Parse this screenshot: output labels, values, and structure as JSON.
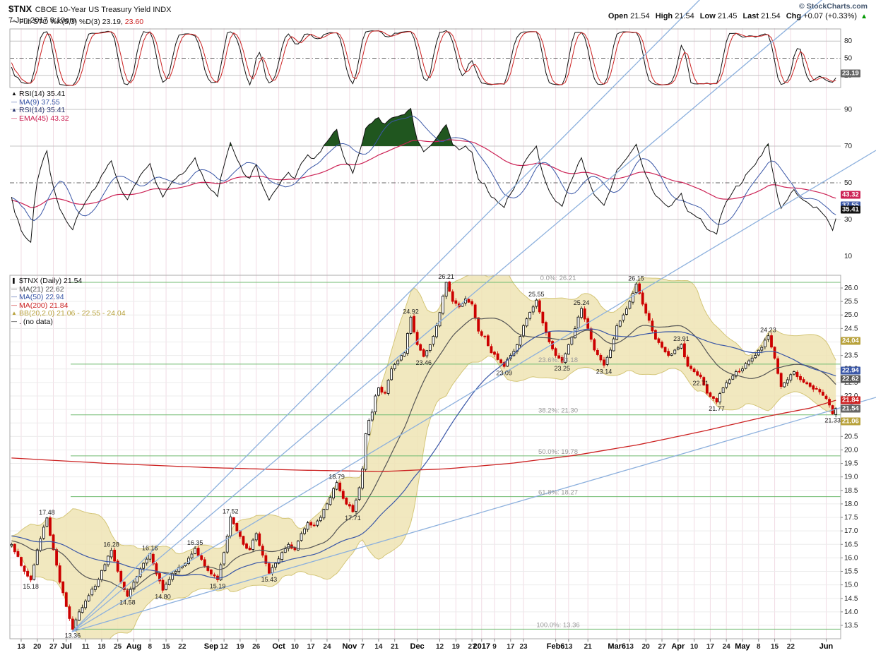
{
  "header": {
    "symbol": "$TNX",
    "description": "CBOE 10-Year US Treasury Yield INDX",
    "timestamp": "7-Jun-2017 9:10am",
    "credit": "© StockCharts.com",
    "quote": {
      "open_label": "Open",
      "open": "21.54",
      "high_label": "High",
      "high": "21.54",
      "low_label": "Low",
      "low": "21.45",
      "last_label": "Last",
      "last": "21.54",
      "chg_label": "Chg",
      "chg": "+0.07 (+0.33%)",
      "arrow": "▲"
    }
  },
  "icons": {
    "line": "—",
    "area": "▲",
    "candle": "❚"
  },
  "chart_data": {
    "type": "multi-panel-financial",
    "colors": {
      "up": "#000000",
      "down": "#cc0000",
      "bb_fill": "#eee4b4",
      "bb_edge": "#d4c678",
      "bb_box": "#b8a23c",
      "ma21": "#555555",
      "ma50": "#3a57a7",
      "ma200": "#cc2222",
      "last_box": "#666666",
      "fib": "#70bb70",
      "fib_label": "#999999",
      "trend": "#8cb0dd",
      "grid_h": "#ececec",
      "grid_v": "#f1dbe4",
      "frame": "#aaaaaa",
      "level_line": "#c4c4c4",
      "mid_line": "#666666",
      "rsi": "#111111",
      "rsi_dup": "#26336e",
      "rsi_ma9": "#3a57a7",
      "rsi_ema45": "#cc2255",
      "rsi_fill": "#20561f",
      "stoch_k": "#111111",
      "stoch_d": "#cc2222",
      "text": "#111111",
      "axis_text": "#222222",
      "annotation": "#222222"
    },
    "stochastic": {
      "type": "line",
      "legend": {
        "label": "Full STO %K(5,3) %D(3)",
        "k_value": "23.19,",
        "d_value": "23.60"
      },
      "k_last": 23.19,
      "d_last": 23.6,
      "ylim": [
        0,
        100
      ],
      "gridlines": [
        80,
        50,
        20
      ],
      "axis_labels": [
        "80",
        "50",
        "20"
      ],
      "box": {
        "text": "23.19",
        "value": 23.19
      }
    },
    "rsi": {
      "type": "line",
      "legend": [
        {
          "label": "RSI(14) 35.41",
          "color_key": "rsi",
          "icon": "area"
        },
        {
          "label": "MA(9) 37.55",
          "color_key": "rsi_ma9",
          "icon": "line"
        },
        {
          "label": "RSI(14) 35.41",
          "color_key": "rsi_dup",
          "icon": "area"
        },
        {
          "label": "EMA(45) 43.32",
          "color_key": "rsi_ema45",
          "icon": "line"
        }
      ],
      "last_values": {
        "rsi": 35.41,
        "ma9": 37.55,
        "ema45": 43.32
      },
      "gridlines": [
        90,
        70,
        30
      ],
      "mid_gridline": 50,
      "axis_labels": [
        90,
        70,
        50,
        30,
        10
      ],
      "overbought_level": 70,
      "boxes": [
        {
          "text": "43.32",
          "value": 43.32,
          "color_key": "rsi_ema45"
        },
        {
          "text": "37.55",
          "value": 37.55,
          "color_key": "rsi_ma9"
        },
        {
          "text": "35.41",
          "value": 35.41,
          "color_key": "rsi"
        }
      ]
    },
    "price": {
      "type": "candlestick",
      "title": "$TNX (Daily) 21.54",
      "last": 21.54,
      "legend": [
        {
          "label": "$TNX (Daily) 21.54",
          "color_key": "text",
          "icon": "candle"
        },
        {
          "label": "MA(21) 22.62",
          "color_key": "ma21",
          "icon": "line"
        },
        {
          "label": "MA(50) 22.94",
          "color_key": "ma50",
          "icon": "line"
        },
        {
          "label": "MA(200) 21.84",
          "color_key": "ma200",
          "icon": "line"
        },
        {
          "label": "BB(20,2.0) 21.06 - 22.55 - 24.04",
          "color_key": "bb_box",
          "icon": "area"
        },
        {
          "label": ". (no data)",
          "color_key": "text",
          "icon": "line"
        }
      ],
      "ylim": [
        13.5,
        26.0
      ],
      "ytick_step": 0.5,
      "bars_total": 258,
      "anchors": [
        [
          0,
          16.5
        ],
        [
          2,
          16.05
        ],
        [
          4,
          15.5
        ],
        [
          6,
          15.18
        ],
        [
          8,
          16.3
        ],
        [
          11,
          17.48
        ],
        [
          13,
          16.3
        ],
        [
          15,
          15.1
        ],
        [
          17,
          14.2
        ],
        [
          19,
          13.36
        ],
        [
          21,
          14.0
        ],
        [
          24,
          14.6
        ],
        [
          27,
          15.2
        ],
        [
          31,
          16.28
        ],
        [
          34,
          15.1
        ],
        [
          36,
          14.58
        ],
        [
          38,
          15.1
        ],
        [
          41,
          15.8
        ],
        [
          43,
          16.16
        ],
        [
          45,
          15.4
        ],
        [
          47,
          14.8
        ],
        [
          49,
          15.2
        ],
        [
          51,
          15.5
        ],
        [
          54,
          15.8
        ],
        [
          57,
          16.35
        ],
        [
          60,
          15.7
        ],
        [
          62,
          15.4
        ],
        [
          64,
          15.19
        ],
        [
          66,
          16.2
        ],
        [
          68,
          17.52
        ],
        [
          70,
          17.0
        ],
        [
          72,
          16.5
        ],
        [
          74,
          16.3
        ],
        [
          76,
          16.9
        ],
        [
          78,
          16.1
        ],
        [
          80,
          15.43
        ],
        [
          82,
          15.8
        ],
        [
          84,
          16.2
        ],
        [
          86,
          16.5
        ],
        [
          88,
          16.3
        ],
        [
          90,
          16.9
        ],
        [
          92,
          17.3
        ],
        [
          94,
          17.2
        ],
        [
          96,
          17.5
        ],
        [
          98,
          18.0
        ],
        [
          101,
          18.79
        ],
        [
          103,
          18.2
        ],
        [
          106,
          17.71
        ],
        [
          108,
          18.6
        ],
        [
          109,
          19.3
        ],
        [
          110,
          20.6
        ],
        [
          111,
          21.1
        ],
        [
          112,
          21.4
        ],
        [
          113,
          22.0
        ],
        [
          114,
          22.3
        ],
        [
          116,
          22.1
        ],
        [
          118,
          23.0
        ],
        [
          120,
          23.3
        ],
        [
          122,
          23.6
        ],
        [
          124,
          24.92
        ],
        [
          126,
          23.9
        ],
        [
          128,
          23.46
        ],
        [
          130,
          23.9
        ],
        [
          132,
          24.6
        ],
        [
          134,
          25.7
        ],
        [
          135,
          26.21
        ],
        [
          137,
          25.5
        ],
        [
          139,
          25.3
        ],
        [
          141,
          25.6
        ],
        [
          143,
          25.4
        ],
        [
          145,
          24.4
        ],
        [
          147,
          24.2
        ],
        [
          149,
          23.6
        ],
        [
          151,
          23.35
        ],
        [
          153,
          23.09
        ],
        [
          155,
          23.5
        ],
        [
          157,
          23.9
        ],
        [
          159,
          24.6
        ],
        [
          161,
          25.1
        ],
        [
          163,
          25.55
        ],
        [
          165,
          24.7
        ],
        [
          167,
          24.0
        ],
        [
          169,
          23.5
        ],
        [
          171,
          23.25
        ],
        [
          173,
          23.9
        ],
        [
          175,
          24.5
        ],
        [
          177,
          25.24
        ],
        [
          179,
          24.5
        ],
        [
          181,
          23.7
        ],
        [
          184,
          23.14
        ],
        [
          186,
          23.7
        ],
        [
          188,
          24.6
        ],
        [
          190,
          25.0
        ],
        [
          192,
          25.5
        ],
        [
          194,
          26.15
        ],
        [
          196,
          25.4
        ],
        [
          198,
          24.8
        ],
        [
          200,
          24.1
        ],
        [
          202,
          23.8
        ],
        [
          204,
          23.5
        ],
        [
          206,
          23.7
        ],
        [
          208,
          23.91
        ],
        [
          210,
          23.1
        ],
        [
          212,
          22.9
        ],
        [
          214,
          22.71
        ],
        [
          216,
          22.1
        ],
        [
          219,
          21.77
        ],
        [
          221,
          22.3
        ],
        [
          223,
          22.6
        ],
        [
          225,
          22.9
        ],
        [
          227,
          23.0
        ],
        [
          229,
          23.3
        ],
        [
          231,
          23.5
        ],
        [
          233,
          23.8
        ],
        [
          235,
          24.23
        ],
        [
          237,
          23.4
        ],
        [
          239,
          22.35
        ],
        [
          241,
          22.6
        ],
        [
          243,
          22.9
        ],
        [
          245,
          22.6
        ],
        [
          247,
          22.45
        ],
        [
          249,
          22.25
        ],
        [
          251,
          22.15
        ],
        [
          253,
          21.9
        ],
        [
          255,
          21.33
        ],
        [
          256,
          21.54
        ]
      ],
      "ma200_anchors": [
        [
          0,
          19.7
        ],
        [
          30,
          19.5
        ],
        [
          60,
          19.35
        ],
        [
          90,
          19.25
        ],
        [
          115,
          19.2
        ],
        [
          135,
          19.3
        ],
        [
          155,
          19.5
        ],
        [
          175,
          19.8
        ],
        [
          195,
          20.2
        ],
        [
          215,
          20.7
        ],
        [
          235,
          21.25
        ],
        [
          248,
          21.55
        ],
        [
          256,
          21.84
        ]
      ],
      "annotations": [
        {
          "b": 6,
          "t": "15.18",
          "p": "b"
        },
        {
          "b": 11,
          "t": "17.48",
          "p": "a"
        },
        {
          "b": 19,
          "t": "13.36",
          "p": "b"
        },
        {
          "b": 31,
          "t": "16.28",
          "p": "a"
        },
        {
          "b": 36,
          "t": "14.58",
          "p": "b"
        },
        {
          "b": 43,
          "t": "16.16",
          "p": "a"
        },
        {
          "b": 47,
          "t": "14.80",
          "p": "b"
        },
        {
          "b": 57,
          "t": "16.35",
          "p": "a"
        },
        {
          "b": 64,
          "t": "15.19",
          "p": "b"
        },
        {
          "b": 68,
          "t": "17.52",
          "p": "a"
        },
        {
          "b": 80,
          "t": "15.43",
          "p": "b"
        },
        {
          "b": 101,
          "t": "18.79",
          "p": "a"
        },
        {
          "b": 106,
          "t": "17.71",
          "p": "b"
        },
        {
          "b": 124,
          "t": "24.92",
          "p": "a"
        },
        {
          "b": 128,
          "t": "23.46",
          "p": "b"
        },
        {
          "b": 135,
          "t": "26.21",
          "p": "a"
        },
        {
          "b": 153,
          "t": "23.09",
          "p": "b"
        },
        {
          "b": 163,
          "t": "25.55",
          "p": "a"
        },
        {
          "b": 171,
          "t": "23.25",
          "p": "b"
        },
        {
          "b": 177,
          "t": "25.24",
          "p": "a"
        },
        {
          "b": 184,
          "t": "23.14",
          "p": "b"
        },
        {
          "b": 194,
          "t": "26.15",
          "p": "a"
        },
        {
          "b": 208,
          "t": "23.91",
          "p": "a"
        },
        {
          "b": 214,
          "t": "22.71",
          "p": "b"
        },
        {
          "b": 219,
          "t": "21.77",
          "p": "b"
        },
        {
          "b": 235,
          "t": "24.23",
          "p": "a"
        },
        {
          "b": 255,
          "t": "21.33",
          "p": "b"
        }
      ],
      "fib_levels": [
        {
          "label": "0.0%: 26.21",
          "value": 26.21
        },
        {
          "label": "23.6%: 23.18",
          "value": 23.18
        },
        {
          "label": "38.2%: 21.30",
          "value": 21.3
        },
        {
          "label": "50.0%: 19.78",
          "value": 19.78
        },
        {
          "label": "61.8%: 18.27",
          "value": 18.27
        },
        {
          "label": "100.0%: 13.36",
          "value": 13.36
        }
      ],
      "boxes": [
        {
          "text": "24.04",
          "value": 24.04,
          "color_key": "bb_box"
        },
        {
          "text": "22.94",
          "value": 22.94,
          "color_key": "ma50"
        },
        {
          "text": "22.62",
          "value": 22.62,
          "color_key": "ma21"
        },
        {
          "text": "21.84",
          "value": 21.84,
          "color_key": "ma200"
        },
        {
          "text": "21.54",
          "value": 21.54,
          "color_key": "last_box"
        },
        {
          "text": "21.06",
          "value": 21.06,
          "color_key": "bb_box"
        }
      ],
      "xticks": [
        [
          3,
          "13",
          0
        ],
        [
          8,
          "20",
          0
        ],
        [
          13,
          "27",
          0
        ],
        [
          17,
          "Jul",
          1
        ],
        [
          23,
          "11",
          0
        ],
        [
          28,
          "18",
          0
        ],
        [
          33,
          "25",
          0
        ],
        [
          38,
          "Aug",
          1
        ],
        [
          43,
          "8",
          0
        ],
        [
          48,
          "15",
          0
        ],
        [
          53,
          "22",
          0
        ],
        [
          62,
          "Sep",
          1
        ],
        [
          66,
          "12",
          0
        ],
        [
          71,
          "19",
          0
        ],
        [
          76,
          "26",
          0
        ],
        [
          83,
          "Oct",
          1
        ],
        [
          88,
          "10",
          0
        ],
        [
          93,
          "17",
          0
        ],
        [
          98,
          "24",
          0
        ],
        [
          105,
          "Nov",
          1
        ],
        [
          109,
          "7",
          0
        ],
        [
          114,
          "14",
          0
        ],
        [
          119,
          "21",
          0
        ],
        [
          126,
          "Dec",
          1
        ],
        [
          133,
          "12",
          0
        ],
        [
          138,
          "19",
          0
        ],
        [
          143,
          "27",
          0
        ],
        [
          146,
          "2017",
          1
        ],
        [
          150,
          "9",
          0
        ],
        [
          155,
          "17",
          0
        ],
        [
          159,
          "23",
          0
        ],
        [
          169,
          "Feb6",
          1
        ],
        [
          173,
          "13",
          0
        ],
        [
          179,
          "21",
          0
        ],
        [
          188,
          "Mar6",
          1
        ],
        [
          192,
          "13",
          0
        ],
        [
          197,
          "20",
          0
        ],
        [
          202,
          "27",
          0
        ],
        [
          207,
          "Apr",
          1
        ],
        [
          212,
          "10",
          0
        ],
        [
          217,
          "17",
          0
        ],
        [
          222,
          "24",
          0
        ],
        [
          227,
          "May",
          1
        ],
        [
          232,
          "8",
          0
        ],
        [
          237,
          "15",
          0
        ],
        [
          242,
          "22",
          0
        ],
        [
          253,
          "Jun",
          1
        ]
      ],
      "trendlines": [
        [
          102,
          895,
          1000,
          -10
        ],
        [
          102,
          895,
          1175,
          -10
        ],
        [
          102,
          895,
          1240,
          213
        ],
        [
          102,
          895,
          1240,
          563
        ]
      ]
    }
  }
}
